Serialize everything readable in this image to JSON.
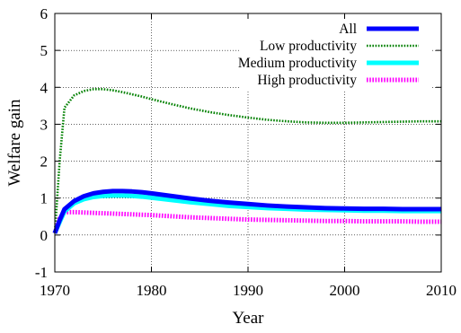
{
  "chart_data": {
    "type": "line",
    "xlabel": "Year",
    "ylabel": "Welfare gain",
    "xlim": [
      1970,
      2010
    ],
    "ylim": [
      -1,
      6
    ],
    "xticks": [
      1970,
      1980,
      1990,
      2000,
      2010
    ],
    "yticks": [
      -1,
      0,
      1,
      2,
      3,
      4,
      5,
      6
    ],
    "xtick_labels": [
      "1970",
      "1980",
      "1990",
      "2000",
      "2010"
    ],
    "ytick_labels": [
      "-1",
      "0",
      "1",
      "2",
      "3",
      "4",
      "5",
      "6"
    ],
    "grid": true,
    "legend_position": "top-right",
    "x": [
      1970,
      1970.5,
      1971,
      1972,
      1973,
      1974,
      1975,
      1976,
      1977,
      1978,
      1979,
      1980,
      1982,
      1984,
      1986,
      1988,
      1990,
      1992,
      1994,
      1996,
      1998,
      2000,
      2002,
      2004,
      2006,
      2008,
      2010
    ],
    "series": [
      {
        "name": "All",
        "color": "#0000ff",
        "style": "solid-thick",
        "values": [
          0.05,
          0.4,
          0.7,
          0.92,
          1.05,
          1.13,
          1.17,
          1.19,
          1.19,
          1.18,
          1.16,
          1.13,
          1.06,
          0.99,
          0.93,
          0.88,
          0.84,
          0.8,
          0.77,
          0.75,
          0.73,
          0.72,
          0.71,
          0.71,
          0.7,
          0.7,
          0.7
        ]
      },
      {
        "name": "Low productivity",
        "color": "#008000",
        "style": "dotted",
        "values": [
          0.05,
          2.0,
          3.45,
          3.78,
          3.9,
          3.95,
          3.95,
          3.92,
          3.87,
          3.81,
          3.75,
          3.68,
          3.55,
          3.43,
          3.33,
          3.25,
          3.18,
          3.12,
          3.08,
          3.05,
          3.04,
          3.04,
          3.05,
          3.06,
          3.07,
          3.08,
          3.08
        ]
      },
      {
        "name": "Medium productivity",
        "color": "#00ffff",
        "style": "solid-thick",
        "values": [
          0.05,
          0.35,
          0.64,
          0.86,
          0.97,
          1.03,
          1.06,
          1.07,
          1.07,
          1.06,
          1.04,
          1.01,
          0.95,
          0.89,
          0.84,
          0.79,
          0.76,
          0.73,
          0.71,
          0.69,
          0.68,
          0.67,
          0.66,
          0.66,
          0.65,
          0.65,
          0.65
        ]
      },
      {
        "name": "High productivity",
        "color": "#ff00ff",
        "style": "dashed-thick",
        "values": [
          0.05,
          0.45,
          0.62,
          0.62,
          0.61,
          0.6,
          0.59,
          0.58,
          0.57,
          0.56,
          0.55,
          0.54,
          0.51,
          0.48,
          0.46,
          0.44,
          0.42,
          0.41,
          0.4,
          0.39,
          0.38,
          0.38,
          0.37,
          0.37,
          0.37,
          0.36,
          0.36
        ]
      }
    ]
  }
}
